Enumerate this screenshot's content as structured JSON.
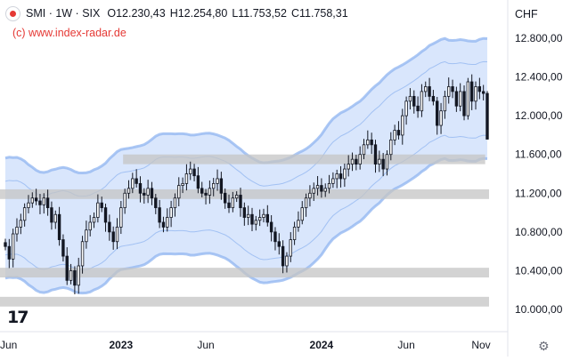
{
  "header": {
    "title": "SMI · 1W · SIX",
    "open": "O12.230,43",
    "high": "H12.254,80",
    "low": "L11.753,52",
    "close": "C11.758,31",
    "source": "(c) www.index-radar.de"
  },
  "currency": "CHF",
  "colors": {
    "up_candle": "#131722",
    "down_candle": "#131722",
    "band_fill": "#cfe0fb",
    "band_line": "#8fb4f0",
    "zone": "#c4c4c4",
    "axis_text": "#131722",
    "logo": "#e53935"
  },
  "icons": {
    "brand": "tradingview-logo-icon",
    "settings": "gear-icon",
    "symbol": "smi-logo-icon"
  },
  "chart_data": {
    "type": "candlestick",
    "ylim": [
      9950,
      12900
    ],
    "y_ticks": [
      "12.800,00",
      "12.400,00",
      "12.000,00",
      "11.600,00",
      "11.200,00",
      "10.800,00",
      "10.400,00",
      "10.000,00"
    ],
    "x_ticks": [
      "Jun",
      "2023",
      "Jun",
      "2024",
      "Jun",
      "Nov"
    ],
    "grid": false,
    "support_zones": [
      {
        "from": 11500,
        "to": 11600,
        "x_from": "2023-01-09",
        "x_to": "2024-10-21"
      },
      {
        "from": 11140,
        "to": 11240,
        "x_from": "2022-06-06",
        "x_to": "2024-11-04"
      },
      {
        "from": 10330,
        "to": 10430,
        "x_from": "2022-06-06",
        "x_to": "2024-11-04"
      },
      {
        "from": 10030,
        "to": 10130,
        "x_from": "2022-06-06",
        "x_to": "2024-11-04"
      }
    ],
    "last_candle": {
      "open": 12230.43,
      "high": 12254.8,
      "low": 11753.52,
      "close": 11758.31
    },
    "dates": [
      "2022-06-06",
      "2022-06-13",
      "2022-06-20",
      "2022-06-27",
      "2022-07-04",
      "2022-07-11",
      "2022-07-18",
      "2022-07-25",
      "2022-08-01",
      "2022-08-08",
      "2022-08-15",
      "2022-08-22",
      "2022-08-29",
      "2022-09-05",
      "2022-09-12",
      "2022-09-19",
      "2022-09-26",
      "2022-10-03",
      "2022-10-10",
      "2022-10-17",
      "2022-10-24",
      "2022-10-31",
      "2022-11-07",
      "2022-11-14",
      "2022-11-21",
      "2022-11-28",
      "2022-12-05",
      "2022-12-12",
      "2022-12-19",
      "2022-12-26",
      "2023-01-02",
      "2023-01-09",
      "2023-01-16",
      "2023-01-23",
      "2023-01-30",
      "2023-02-06",
      "2023-02-13",
      "2023-02-20",
      "2023-02-27",
      "2023-03-06",
      "2023-03-13",
      "2023-03-20",
      "2023-03-27",
      "2023-04-03",
      "2023-04-10",
      "2023-04-17",
      "2023-04-24",
      "2023-05-01",
      "2023-05-08",
      "2023-05-15",
      "2023-05-22",
      "2023-05-29",
      "2023-06-05",
      "2023-06-12",
      "2023-06-19",
      "2023-06-26",
      "2023-07-03",
      "2023-07-10",
      "2023-07-17",
      "2023-07-24",
      "2023-07-31",
      "2023-08-07",
      "2023-08-14",
      "2023-08-21",
      "2023-08-28",
      "2023-09-04",
      "2023-09-11",
      "2023-09-18",
      "2023-09-25",
      "2023-10-02",
      "2023-10-09",
      "2023-10-16",
      "2023-10-23",
      "2023-10-30",
      "2023-11-06",
      "2023-11-13",
      "2023-11-20",
      "2023-11-27",
      "2023-12-04",
      "2023-12-11",
      "2023-12-18",
      "2023-12-25",
      "2024-01-01",
      "2024-01-08",
      "2024-01-15",
      "2024-01-22",
      "2024-01-29",
      "2024-02-05",
      "2024-02-12",
      "2024-02-19",
      "2024-02-26",
      "2024-03-04",
      "2024-03-11",
      "2024-03-18",
      "2024-03-25",
      "2024-04-01",
      "2024-04-08",
      "2024-04-15",
      "2024-04-22",
      "2024-04-29",
      "2024-05-06",
      "2024-05-13",
      "2024-05-20",
      "2024-05-27",
      "2024-06-03",
      "2024-06-10",
      "2024-06-17",
      "2024-06-24",
      "2024-07-01",
      "2024-07-08",
      "2024-07-15",
      "2024-07-22",
      "2024-07-29",
      "2024-08-05",
      "2024-08-12",
      "2024-08-19",
      "2024-08-26",
      "2024-09-02",
      "2024-09-09",
      "2024-09-16",
      "2024-09-23",
      "2024-09-30",
      "2024-10-07",
      "2024-10-14",
      "2024-10-21",
      "2024-10-28"
    ],
    "close": [
      10650,
      10520,
      10780,
      10850,
      10920,
      11050,
      11100,
      11150,
      11120,
      11080,
      11150,
      11050,
      10900,
      10980,
      10720,
      10550,
      10300,
      10400,
      10250,
      10450,
      10700,
      10820,
      10900,
      10950,
      11100,
      11050,
      10900,
      10800,
      10700,
      10850,
      11050,
      11200,
      11250,
      11350,
      11300,
      11200,
      11180,
      11250,
      11150,
      11050,
      10900,
      10850,
      10950,
      11050,
      11150,
      11280,
      11300,
      11400,
      11450,
      11380,
      11250,
      11200,
      11180,
      11250,
      11300,
      11350,
      11200,
      11100,
      11050,
      11150,
      11180,
      11050,
      10950,
      10980,
      10880,
      10920,
      10950,
      10980,
      10900,
      10800,
      10700,
      10650,
      10450,
      10550,
      10720,
      10850,
      10920,
      11050,
      11150,
      11200,
      11250,
      11280,
      11220,
      11250,
      11300,
      11350,
      11400,
      11350,
      11450,
      11500,
      11550,
      11500,
      11600,
      11700,
      11750,
      11700,
      11500,
      11550,
      11450,
      11600,
      11750,
      11850,
      11800,
      12000,
      12150,
      12200,
      12100,
      12050,
      12250,
      12300,
      12200,
      12150,
      11900,
      12050,
      12200,
      12300,
      12250,
      12100,
      12250,
      12000,
      12350,
      12150,
      12300,
      12250,
      12230,
      11758
    ]
  }
}
